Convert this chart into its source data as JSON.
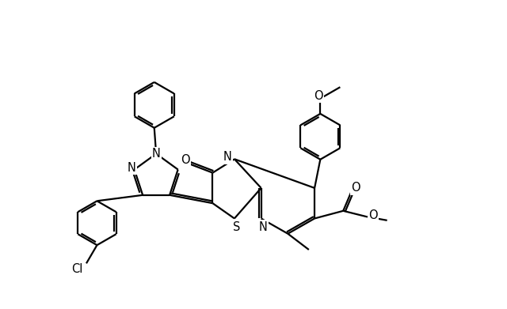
{
  "background_color": "#ffffff",
  "line_color": "#000000",
  "lw": 1.6,
  "dbo": 0.055,
  "fontsize": 10.5,
  "fig_w": 6.4,
  "fig_h": 3.91,
  "dpi": 100,
  "xlim": [
    0,
    12.5
  ],
  "ylim": [
    0,
    8.0
  ]
}
